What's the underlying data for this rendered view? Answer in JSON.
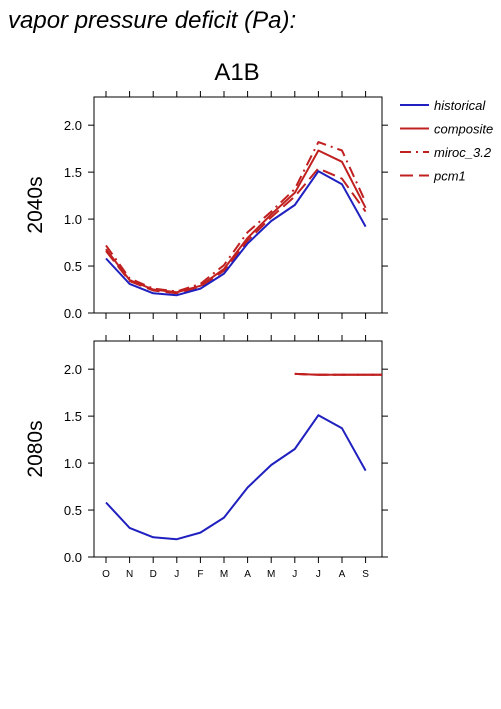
{
  "figure": {
    "title": "vapor pressure deficit (Pa):",
    "scenario": "A1B"
  },
  "legend": [
    {
      "label": "historical",
      "color": "#2020c0",
      "dash": "solid"
    },
    {
      "label": "composite",
      "color": "#c02020",
      "dash": "solid"
    },
    {
      "label": "miroc_3.2",
      "color": "#c02020",
      "dash": "dashdot"
    },
    {
      "label": "pcm1",
      "color": "#c02020",
      "dash": "longdash"
    }
  ],
  "chart_data": [
    {
      "type": "line",
      "ylabel": "2040s",
      "categories": [
        "O",
        "N",
        "D",
        "J",
        "F",
        "M",
        "A",
        "M",
        "J",
        "J",
        "A",
        "S"
      ],
      "ylim": [
        0,
        2.3
      ],
      "yticks": [
        "0.0",
        "0.5",
        "1.0",
        "1.5",
        "2.0"
      ],
      "series": [
        {
          "name": "historical",
          "values": [
            0.58,
            0.31,
            0.21,
            0.19,
            0.26,
            0.42,
            0.74,
            0.98,
            1.15,
            1.51,
            1.37,
            0.92
          ]
        },
        {
          "name": "composite",
          "values": [
            0.68,
            0.35,
            0.25,
            0.22,
            0.29,
            0.47,
            0.8,
            1.05,
            1.28,
            1.73,
            1.61,
            1.12
          ]
        },
        {
          "name": "miroc_3.2",
          "values": [
            0.72,
            0.37,
            0.26,
            0.23,
            0.31,
            0.51,
            0.86,
            1.08,
            1.32,
            1.82,
            1.73,
            1.18
          ]
        },
        {
          "name": "pcm1",
          "values": [
            0.66,
            0.34,
            0.24,
            0.21,
            0.28,
            0.45,
            0.77,
            1.02,
            1.24,
            1.54,
            1.43,
            1.08
          ]
        }
      ]
    },
    {
      "type": "line",
      "ylabel": "2080s",
      "categories": [
        "O",
        "N",
        "D",
        "J",
        "F",
        "M",
        "A",
        "M",
        "J",
        "J",
        "A",
        "S"
      ],
      "ylim": [
        0,
        2.3
      ],
      "yticks": [
        "0.0",
        "0.5",
        "1.0",
        "1.5",
        "2.0"
      ],
      "series": [
        {
          "name": "historical",
          "values": [
            0.58,
            0.31,
            0.21,
            0.19,
            0.26,
            0.42,
            0.74,
            0.98,
            1.15,
            1.51,
            1.37,
            0.92
          ]
        },
        {
          "name": "composite",
          "values": [
            null,
            null,
            null,
            null,
            null,
            null,
            null,
            null,
            1.95,
            1.94,
            1.94,
            1.94
          ]
        },
        {
          "name": "miroc_3.2",
          "values": [
            null,
            null,
            null,
            null,
            null,
            null,
            null,
            null,
            1.95,
            1.94,
            1.94,
            1.94
          ]
        },
        {
          "name": "pcm1",
          "values": [
            null,
            null,
            null,
            null,
            null,
            null,
            null,
            null,
            1.95,
            1.94,
            1.94,
            1.94
          ]
        }
      ]
    }
  ]
}
